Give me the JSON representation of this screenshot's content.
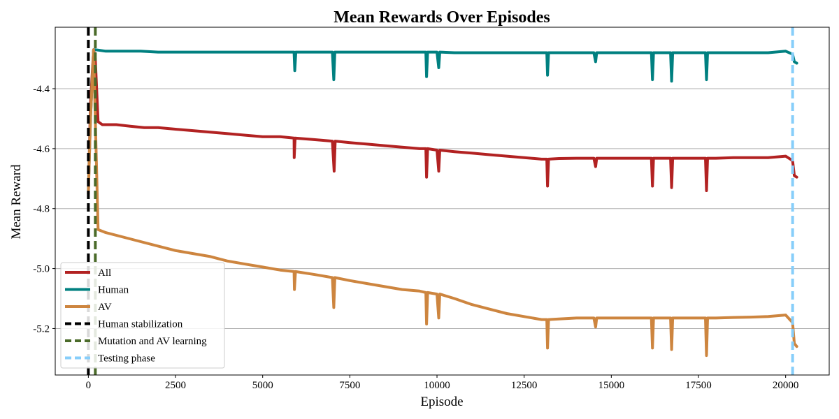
{
  "chart_data": {
    "type": "line",
    "title": "Mean Rewards Over Episodes",
    "xlabel": "Episode",
    "ylabel": "Mean Reward",
    "xlim": [
      -950,
      21250
    ],
    "ylim": [
      -5.355,
      -4.195
    ],
    "xticks": [
      0,
      2500,
      5000,
      7500,
      10000,
      12500,
      15000,
      17500,
      20000
    ],
    "xtick_labels": [
      "0",
      "2500",
      "5000",
      "7500",
      "10000",
      "12500",
      "15000",
      "17500",
      "20000"
    ],
    "yticks": [
      -4.4,
      -4.6,
      -4.8,
      -5.0,
      -5.2
    ],
    "ytick_labels": [
      "-4.4",
      "-4.6",
      "-4.8",
      "-5.0",
      "-5.2"
    ],
    "grid": "horizontal",
    "legend_position": "lower-left",
    "series": [
      {
        "name": "All",
        "color": "#b22222",
        "style": "solid",
        "points": [
          [
            0,
            -4.75
          ],
          [
            60,
            -4.45
          ],
          [
            150,
            -4.27
          ],
          [
            200,
            -4.3
          ],
          [
            280,
            -4.51
          ],
          [
            400,
            -4.52
          ],
          [
            800,
            -4.52
          ],
          [
            1200,
            -4.525
          ],
          [
            1600,
            -4.53
          ],
          [
            2000,
            -4.53
          ],
          [
            2500,
            -4.535
          ],
          [
            3000,
            -4.54
          ],
          [
            3500,
            -4.545
          ],
          [
            4000,
            -4.55
          ],
          [
            4500,
            -4.555
          ],
          [
            5000,
            -4.56
          ],
          [
            5500,
            -4.56
          ],
          [
            5900,
            -4.565
          ],
          [
            5905,
            -4.63
          ],
          [
            5930,
            -4.565
          ],
          [
            6500,
            -4.57
          ],
          [
            7000,
            -4.575
          ],
          [
            7050,
            -4.675
          ],
          [
            7080,
            -4.575
          ],
          [
            7500,
            -4.58
          ],
          [
            8000,
            -4.585
          ],
          [
            8500,
            -4.59
          ],
          [
            9000,
            -4.595
          ],
          [
            9500,
            -4.6
          ],
          [
            9680,
            -4.6
          ],
          [
            9700,
            -4.695
          ],
          [
            9730,
            -4.6
          ],
          [
            10000,
            -4.605
          ],
          [
            10050,
            -4.675
          ],
          [
            10080,
            -4.605
          ],
          [
            10500,
            -4.61
          ],
          [
            11000,
            -4.615
          ],
          [
            11500,
            -4.62
          ],
          [
            12000,
            -4.625
          ],
          [
            12500,
            -4.63
          ],
          [
            13000,
            -4.635
          ],
          [
            13150,
            -4.635
          ],
          [
            13170,
            -4.725
          ],
          [
            13200,
            -4.635
          ],
          [
            13500,
            -4.633
          ],
          [
            14000,
            -4.632
          ],
          [
            14500,
            -4.632
          ],
          [
            14550,
            -4.66
          ],
          [
            14580,
            -4.632
          ],
          [
            15000,
            -4.632
          ],
          [
            15500,
            -4.632
          ],
          [
            16000,
            -4.632
          ],
          [
            16150,
            -4.632
          ],
          [
            16180,
            -4.725
          ],
          [
            16210,
            -4.632
          ],
          [
            16500,
            -4.632
          ],
          [
            16700,
            -4.632
          ],
          [
            16730,
            -4.73
          ],
          [
            16760,
            -4.632
          ],
          [
            17000,
            -4.632
          ],
          [
            17500,
            -4.632
          ],
          [
            17700,
            -4.632
          ],
          [
            17730,
            -4.74
          ],
          [
            17760,
            -4.632
          ],
          [
            18000,
            -4.632
          ],
          [
            18500,
            -4.63
          ],
          [
            19000,
            -4.63
          ],
          [
            19500,
            -4.63
          ],
          [
            20000,
            -4.625
          ],
          [
            20200,
            -4.64
          ],
          [
            20250,
            -4.69
          ],
          [
            20320,
            -4.695
          ]
        ]
      },
      {
        "name": "Human",
        "color": "#008080",
        "style": "solid",
        "points": [
          [
            0,
            -4.74
          ],
          [
            60,
            -4.5
          ],
          [
            150,
            -4.27
          ],
          [
            200,
            -4.27
          ],
          [
            500,
            -4.275
          ],
          [
            1000,
            -4.275
          ],
          [
            1500,
            -4.275
          ],
          [
            2000,
            -4.278
          ],
          [
            2500,
            -4.278
          ],
          [
            3000,
            -4.278
          ],
          [
            3500,
            -4.278
          ],
          [
            4000,
            -4.278
          ],
          [
            4500,
            -4.278
          ],
          [
            5000,
            -4.278
          ],
          [
            5500,
            -4.278
          ],
          [
            5900,
            -4.278
          ],
          [
            5920,
            -4.34
          ],
          [
            5950,
            -4.278
          ],
          [
            6500,
            -4.278
          ],
          [
            7000,
            -4.278
          ],
          [
            7040,
            -4.37
          ],
          [
            7070,
            -4.278
          ],
          [
            7500,
            -4.278
          ],
          [
            8000,
            -4.278
          ],
          [
            8500,
            -4.278
          ],
          [
            9000,
            -4.278
          ],
          [
            9500,
            -4.278
          ],
          [
            9680,
            -4.278
          ],
          [
            9700,
            -4.36
          ],
          [
            9730,
            -4.278
          ],
          [
            10000,
            -4.278
          ],
          [
            10050,
            -4.33
          ],
          [
            10080,
            -4.278
          ],
          [
            10500,
            -4.28
          ],
          [
            11000,
            -4.28
          ],
          [
            11500,
            -4.28
          ],
          [
            12000,
            -4.28
          ],
          [
            12500,
            -4.28
          ],
          [
            13000,
            -4.28
          ],
          [
            13150,
            -4.28
          ],
          [
            13170,
            -4.355
          ],
          [
            13200,
            -4.28
          ],
          [
            13500,
            -4.28
          ],
          [
            14000,
            -4.28
          ],
          [
            14500,
            -4.28
          ],
          [
            14550,
            -4.31
          ],
          [
            14580,
            -4.28
          ],
          [
            15000,
            -4.28
          ],
          [
            15500,
            -4.28
          ],
          [
            16000,
            -4.28
          ],
          [
            16150,
            -4.28
          ],
          [
            16180,
            -4.37
          ],
          [
            16210,
            -4.28
          ],
          [
            16500,
            -4.28
          ],
          [
            16700,
            -4.28
          ],
          [
            16730,
            -4.375
          ],
          [
            16760,
            -4.28
          ],
          [
            17000,
            -4.28
          ],
          [
            17500,
            -4.28
          ],
          [
            17700,
            -4.28
          ],
          [
            17730,
            -4.37
          ],
          [
            17760,
            -4.28
          ],
          [
            18000,
            -4.28
          ],
          [
            18500,
            -4.28
          ],
          [
            19000,
            -4.28
          ],
          [
            19500,
            -4.28
          ],
          [
            20000,
            -4.275
          ],
          [
            20200,
            -4.285
          ],
          [
            20250,
            -4.31
          ],
          [
            20320,
            -4.315
          ]
        ]
      },
      {
        "name": "AV",
        "color": "#cd853f",
        "style": "solid",
        "points": [
          [
            0,
            -4.75
          ],
          [
            60,
            -4.5
          ],
          [
            150,
            -4.27
          ],
          [
            200,
            -4.5
          ],
          [
            280,
            -4.87
          ],
          [
            500,
            -4.88
          ],
          [
            1000,
            -4.895
          ],
          [
            1500,
            -4.91
          ],
          [
            2000,
            -4.925
          ],
          [
            2500,
            -4.94
          ],
          [
            3000,
            -4.95
          ],
          [
            3500,
            -4.96
          ],
          [
            4000,
            -4.975
          ],
          [
            4500,
            -4.985
          ],
          [
            5000,
            -4.995
          ],
          [
            5500,
            -5.005
          ],
          [
            5900,
            -5.01
          ],
          [
            5910,
            -5.07
          ],
          [
            5940,
            -5.01
          ],
          [
            6500,
            -5.02
          ],
          [
            7000,
            -5.03
          ],
          [
            7040,
            -5.13
          ],
          [
            7070,
            -5.03
          ],
          [
            7500,
            -5.04
          ],
          [
            8000,
            -5.05
          ],
          [
            8500,
            -5.06
          ],
          [
            9000,
            -5.07
          ],
          [
            9500,
            -5.075
          ],
          [
            9680,
            -5.08
          ],
          [
            9700,
            -5.185
          ],
          [
            9730,
            -5.08
          ],
          [
            10000,
            -5.085
          ],
          [
            10050,
            -5.165
          ],
          [
            10080,
            -5.085
          ],
          [
            10500,
            -5.1
          ],
          [
            11000,
            -5.12
          ],
          [
            11500,
            -5.135
          ],
          [
            12000,
            -5.15
          ],
          [
            12500,
            -5.16
          ],
          [
            13000,
            -5.17
          ],
          [
            13150,
            -5.17
          ],
          [
            13170,
            -5.265
          ],
          [
            13200,
            -5.17
          ],
          [
            13500,
            -5.168
          ],
          [
            14000,
            -5.165
          ],
          [
            14500,
            -5.165
          ],
          [
            14550,
            -5.195
          ],
          [
            14580,
            -5.165
          ],
          [
            15000,
            -5.165
          ],
          [
            15500,
            -5.165
          ],
          [
            16000,
            -5.165
          ],
          [
            16150,
            -5.165
          ],
          [
            16180,
            -5.265
          ],
          [
            16210,
            -5.165
          ],
          [
            16500,
            -5.165
          ],
          [
            16700,
            -5.165
          ],
          [
            16730,
            -5.27
          ],
          [
            16760,
            -5.165
          ],
          [
            17000,
            -5.165
          ],
          [
            17500,
            -5.165
          ],
          [
            17700,
            -5.165
          ],
          [
            17730,
            -5.29
          ],
          [
            17760,
            -5.165
          ],
          [
            18000,
            -5.165
          ],
          [
            18500,
            -5.163
          ],
          [
            19000,
            -5.162
          ],
          [
            19500,
            -5.16
          ],
          [
            20000,
            -5.155
          ],
          [
            20200,
            -5.18
          ],
          [
            20250,
            -5.25
          ],
          [
            20320,
            -5.26
          ]
        ]
      }
    ],
    "vlines": [
      {
        "name": "Human stabilization",
        "x": 0,
        "color": "#000000",
        "style": "dashed"
      },
      {
        "name": "Mutation and AV learning",
        "x": 200,
        "color": "#4b6b2a",
        "style": "dashed"
      },
      {
        "name": "Testing phase",
        "x": 20200,
        "color": "#87cefa",
        "style": "dashed"
      }
    ],
    "legend": [
      "All",
      "Human",
      "AV",
      "Human stabilization",
      "Mutation and AV learning",
      "Testing phase"
    ]
  }
}
